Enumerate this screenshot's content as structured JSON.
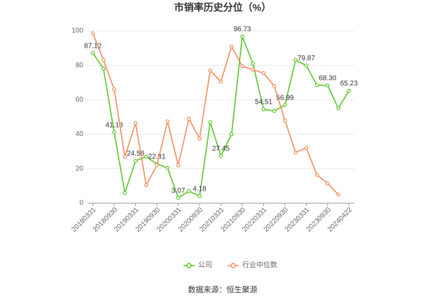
{
  "chart_data": {
    "type": "line",
    "title": "市销率历史分位（%）",
    "categories": [
      "20180331",
      null,
      "20180930",
      null,
      "20190331",
      null,
      "20190930",
      null,
      "20200331",
      null,
      "20200930",
      null,
      "20210331",
      null,
      "20210930",
      null,
      "20220331",
      null,
      "20220930",
      null,
      "20230331",
      null,
      "20230930",
      null,
      "20240422"
    ],
    "series": [
      {
        "name": "公司",
        "color": "#5ac52a",
        "values": [
          87.12,
          78,
          41.18,
          6,
          24.58,
          27,
          22.81,
          20.5,
          3.07,
          7,
          4.18,
          47,
          27.45,
          40,
          96.73,
          81,
          54.51,
          53.5,
          56.99,
          83,
          79.87,
          68.5,
          68.3,
          55,
          65.23
        ],
        "value_labels": [
          "87.12",
          null,
          "41.18",
          null,
          "24.58",
          null,
          "22.81",
          null,
          "3.07",
          null,
          "4.18",
          null,
          "27.45",
          null,
          "96.73",
          null,
          "54.51",
          null,
          "56.99",
          null,
          "79.87",
          null,
          "68.30",
          null,
          "65.23"
        ]
      },
      {
        "name": "行业中位数",
        "color": "#f28c5e",
        "values": [
          98.5,
          83,
          66,
          27,
          46.5,
          10.5,
          22,
          47.5,
          22,
          49,
          37.5,
          77,
          70.5,
          91,
          79.5,
          77.5,
          75.5,
          68,
          48,
          29.5,
          32,
          16.5,
          11.5,
          5,
          null
        ]
      }
    ],
    "ylim": [
      0,
      100
    ],
    "yticks": [
      0,
      20,
      40,
      60,
      80,
      100
    ],
    "grid": true,
    "source": "数据来源：恒生聚源"
  }
}
